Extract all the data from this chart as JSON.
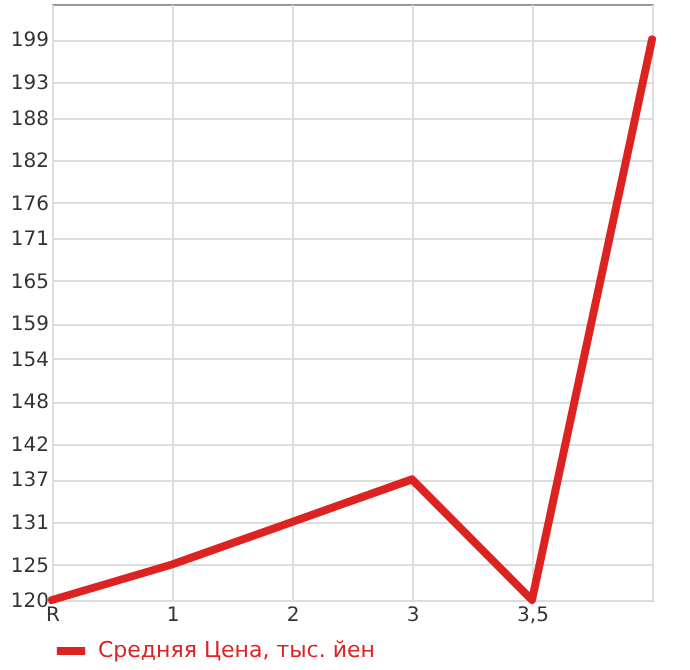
{
  "chart_data": {
    "type": "line",
    "categories": [
      "R",
      "1",
      "2",
      "3",
      "3,5",
      null
    ],
    "series": [
      {
        "name": "Средняя Цена, тыс. йен",
        "color": "#dd2222",
        "values": [
          120,
          125,
          131,
          137,
          120,
          199
        ]
      }
    ],
    "ylim": [
      120,
      204
    ],
    "yticks": [
      120,
      125,
      131,
      137,
      142,
      148,
      154,
      159,
      165,
      171,
      176,
      182,
      188,
      193,
      199
    ],
    "grid": true,
    "legend": "bottom left"
  }
}
